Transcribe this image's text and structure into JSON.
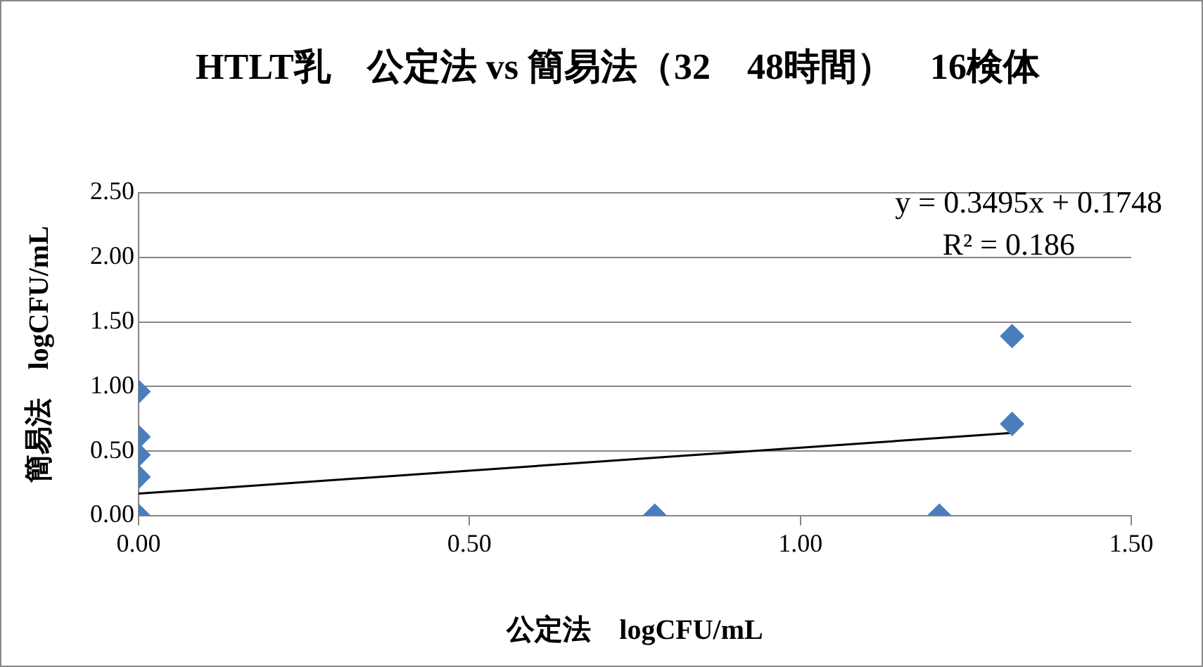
{
  "chart_data": {
    "type": "scatter",
    "title": "HTLT乳　公定法 vs 簡易法（32　48時間）　16検体",
    "xlabel": "公定法　logCFU/mL",
    "ylabel": "簡易法　logCFU/mL",
    "annotations": [
      "y = 0.3495x + 0.1748",
      "R² = 0.186"
    ],
    "marker": "diamond",
    "grid": "y",
    "xlim": [
      0,
      1.5
    ],
    "xticks": [
      {
        "value": 0,
        "label": "0.00"
      },
      {
        "value": 0.5,
        "label": "0.50"
      },
      {
        "value": 1,
        "label": "1.00"
      },
      {
        "value": 1.5,
        "label": "1.50"
      }
    ],
    "ylim": [
      0,
      2.5
    ],
    "yticks": [
      {
        "value": 0,
        "label": "0.00"
      },
      {
        "value": 0.5,
        "label": "0.50"
      },
      {
        "value": 1,
        "label": "1.00"
      },
      {
        "value": 1.5,
        "label": "1.50"
      },
      {
        "value": 2,
        "label": "2.00"
      },
      {
        "value": 2.5,
        "label": "2.50"
      }
    ],
    "series": [
      {
        "type": "scatter",
        "color": "#4a7ebb",
        "x": [
          0,
          0,
          0,
          0,
          0,
          0.78,
          1.21,
          1.32,
          1.32
        ],
        "values": [
          0.96,
          0.61,
          0.47,
          0.3,
          0,
          0,
          0,
          1.39,
          0.71
        ]
      },
      {
        "type": "line",
        "color": "#000000",
        "marker": "none",
        "x": [
          0,
          1.32
        ],
        "values": [
          0.17,
          0.64
        ]
      }
    ]
  }
}
